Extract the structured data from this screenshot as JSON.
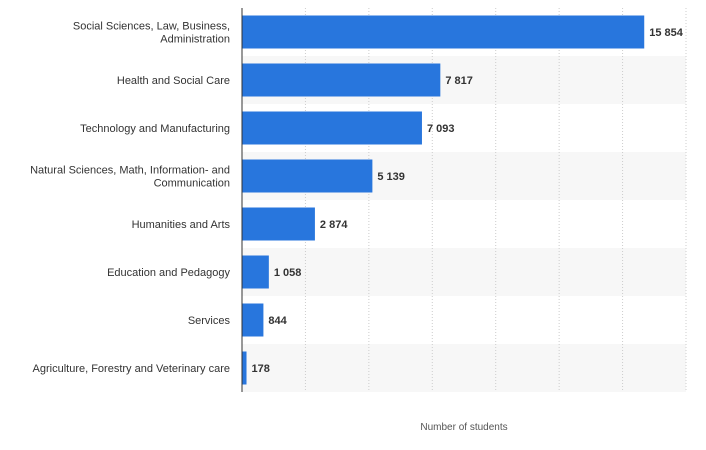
{
  "chart_data": {
    "type": "bar",
    "orientation": "horizontal",
    "title": "",
    "xlabel": "Number of students",
    "ylabel": "",
    "xlim": [
      0,
      17500
    ],
    "grid": true,
    "bar_color": "#2876dd",
    "categories": [
      [
        "Social Sciences, Law, Business,",
        "Administration"
      ],
      [
        "Health and Social Care"
      ],
      [
        "Technology and Manufacturing"
      ],
      [
        "Natural Sciences, Math, Information- and",
        "Communication"
      ],
      [
        "Humanities and Arts"
      ],
      [
        "Education and Pedagogy"
      ],
      [
        "Services"
      ],
      [
        "Agriculture, Forestry and Veterinary care"
      ]
    ],
    "values": [
      15854,
      7817,
      7093,
      5139,
      2874,
      1058,
      844,
      178
    ],
    "value_labels": [
      "15 854",
      "7 817",
      "7 093",
      "5 139",
      "2 874",
      "1 058",
      "844",
      "178"
    ]
  }
}
